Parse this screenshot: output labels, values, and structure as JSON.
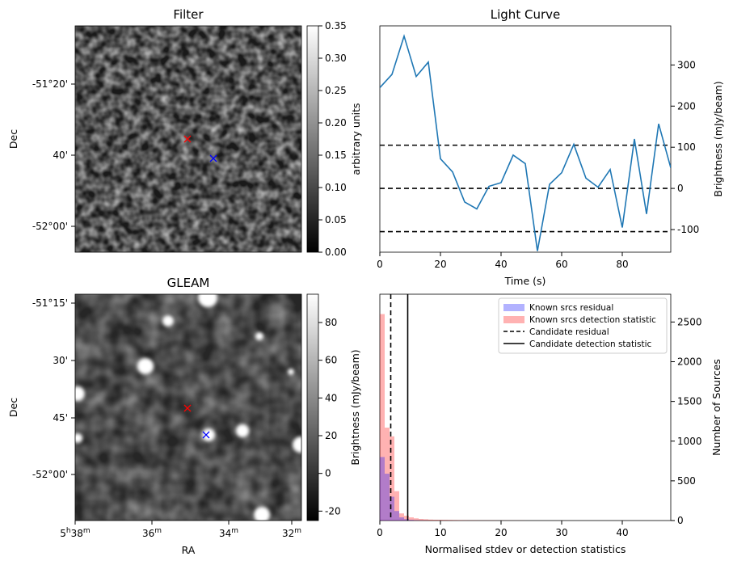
{
  "chart_data": [
    {
      "type": "image",
      "title": "Filter",
      "xlabel": "",
      "ylabel": "Dec",
      "y_tick_labels": [
        "-51°20'",
        "40'",
        "-52°00'"
      ],
      "colorbar": {
        "label": "arbitrary units",
        "range": [
          0,
          0.35
        ],
        "ticks": [
          "0.00",
          "0.05",
          "0.10",
          "0.15",
          "0.20",
          "0.25",
          "0.30",
          "0.35"
        ]
      },
      "markers": [
        {
          "color": "#ff0000",
          "symbol": "x"
        },
        {
          "color": "#0000ff",
          "symbol": "x"
        }
      ]
    },
    {
      "type": "line",
      "title": "Light Curve",
      "xlabel": "Time (s)",
      "ylabel": "Brightness (mJy/beam)",
      "xlim": [
        0,
        96
      ],
      "ylim": [
        -155,
        395
      ],
      "x_ticks": [
        "0",
        "20",
        "40",
        "60",
        "80"
      ],
      "y_ticks": [
        "-100",
        "0",
        "100",
        "200",
        "300"
      ],
      "x": [
        0,
        4,
        8,
        12,
        16,
        20,
        24,
        28,
        32,
        36,
        40,
        44,
        48,
        52,
        56,
        60,
        64,
        68,
        72,
        76,
        80,
        84,
        88,
        92,
        96
      ],
      "series": [
        {
          "values": [
            245,
            277,
            370,
            272,
            307,
            72,
            40,
            -33,
            -50,
            5,
            14,
            81,
            60,
            -152,
            10,
            38,
            107,
            25,
            3,
            46,
            -95,
            120,
            -62,
            157,
            50
          ]
        }
      ],
      "hlines": [
        105,
        0,
        -105
      ],
      "color": "#1f77b4"
    },
    {
      "type": "image",
      "title": "GLEAM",
      "xlabel": "RA",
      "ylabel": "Dec",
      "x_tick_labels": [
        "5h38m",
        "36m",
        "34m",
        "32m"
      ],
      "y_tick_labels": [
        "-51°15'",
        "30'",
        "45'",
        "-52°00'"
      ],
      "colorbar": {
        "label": "Brightness (mJy/beam)",
        "range": [
          -25,
          95
        ],
        "ticks": [
          "-20",
          "0",
          "20",
          "40",
          "60",
          "80"
        ]
      },
      "markers": [
        {
          "color": "#ff0000",
          "symbol": "x"
        },
        {
          "color": "#0000ff",
          "symbol": "x"
        }
      ]
    },
    {
      "type": "histogram",
      "title": "",
      "xlabel": "Normalised stdev or detection statistics",
      "ylabel_left": "Brightness (mJy/beam)",
      "ylabel_right": "Number of Sources",
      "xlim": [
        0,
        48
      ],
      "ylim": [
        0,
        2850
      ],
      "x_ticks": [
        "0",
        "10",
        "20",
        "30",
        "40"
      ],
      "y_ticks": [
        "0",
        "500",
        "1000",
        "1500",
        "2000",
        "2500"
      ],
      "bin_width": 0.8,
      "series": [
        {
          "name": "Known srcs residual",
          "color": "#0000ff",
          "values": [
            800,
            590,
            300,
            120,
            40,
            18,
            8,
            4,
            2,
            1
          ]
        },
        {
          "name": "Known srcs detection statistic",
          "color": "#ff0000",
          "values": [
            2600,
            1170,
            1060,
            370,
            90,
            60,
            40,
            28,
            20,
            16,
            12,
            10,
            9,
            8,
            7,
            6,
            5,
            4,
            3,
            3,
            2,
            2,
            2,
            2,
            1,
            1,
            1,
            1,
            1,
            1
          ]
        }
      ],
      "vlines": [
        {
          "name": "Candidate residual",
          "x": 1.8,
          "style": "dashed"
        },
        {
          "name": "Candidate detection statistic",
          "x": 4.6,
          "style": "solid"
        }
      ],
      "legend_position": "top-right"
    }
  ]
}
